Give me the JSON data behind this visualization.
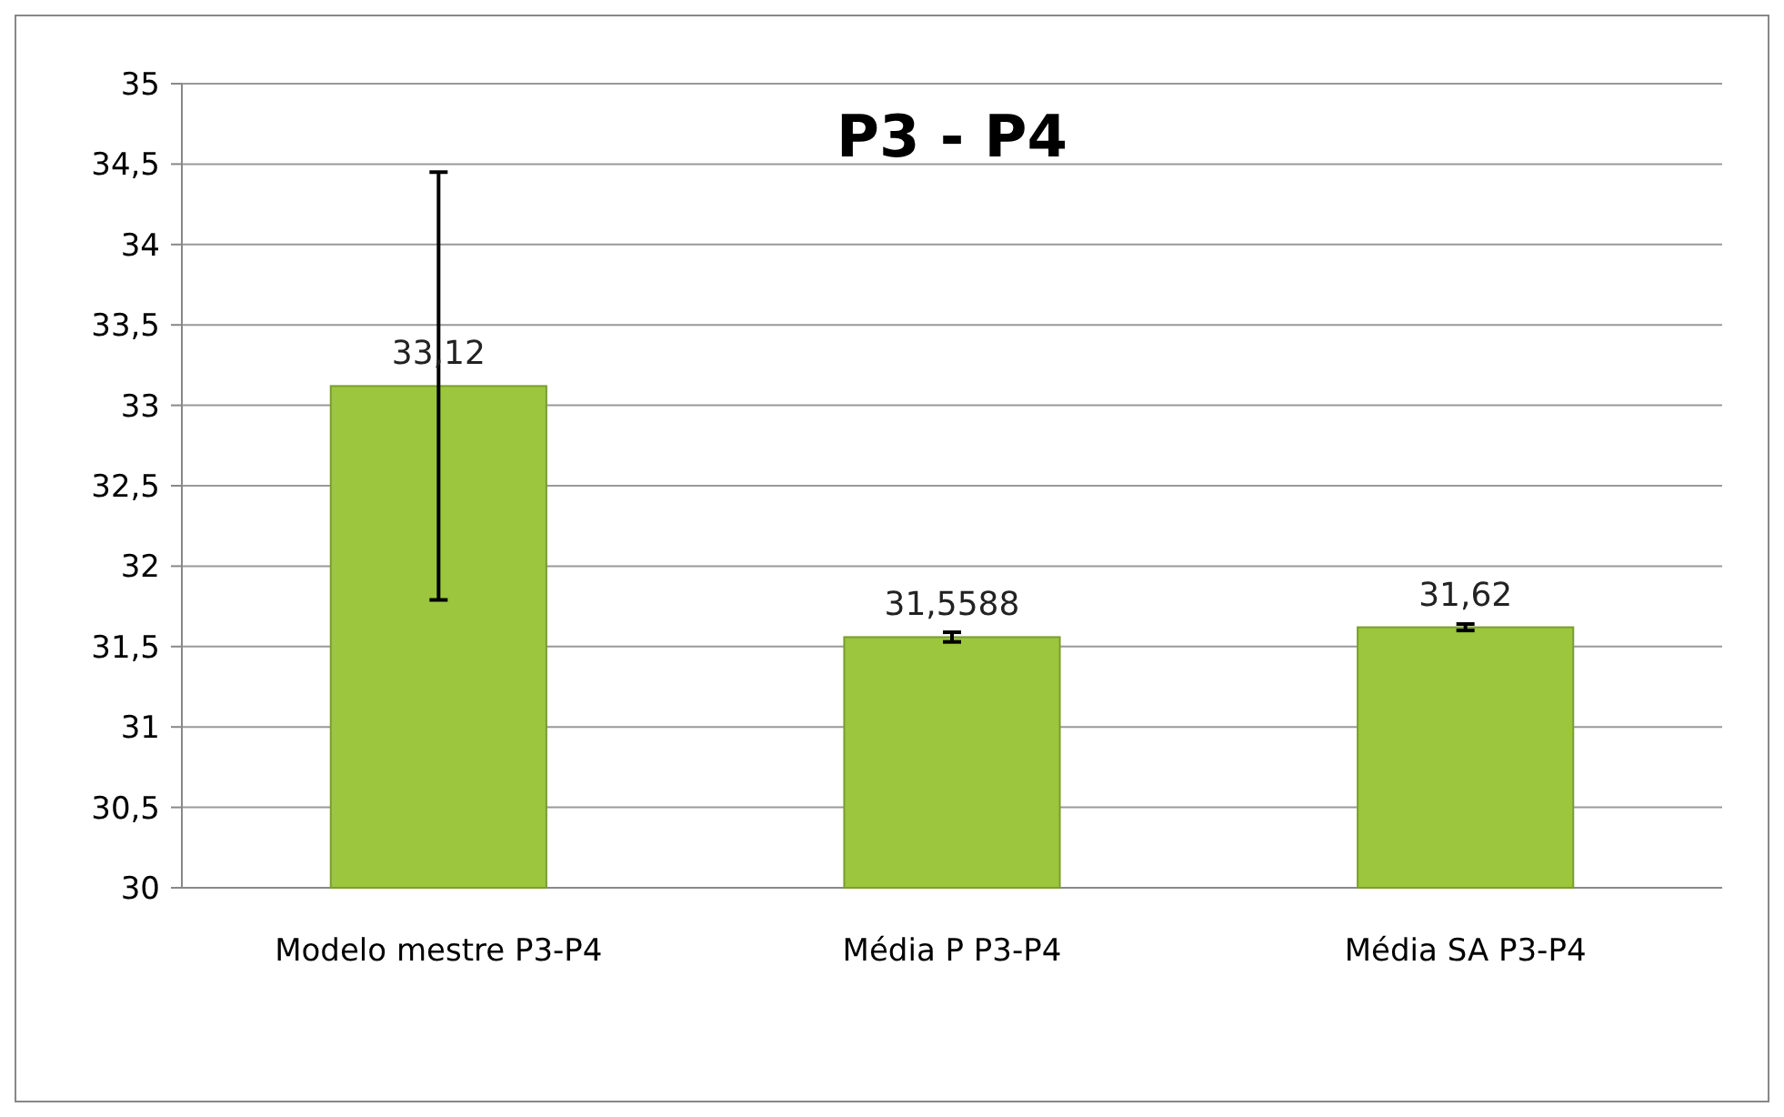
{
  "chart_data": {
    "type": "bar",
    "title": "P3 - P4",
    "categories": [
      "Modelo mestre P3-P4",
      "Média P P3-P4",
      "Média SA P3-P4"
    ],
    "values": [
      33.12,
      31.5588,
      31.62
    ],
    "errors": [
      1.33,
      0.03,
      0.02
    ],
    "value_labels": [
      "33,12",
      "31,5588",
      "31,62"
    ],
    "color": "#9bc63e",
    "ylim": [
      30,
      35
    ],
    "yticks": [
      {
        "value": 30,
        "label": "30"
      },
      {
        "value": 30.5,
        "label": "30,5"
      },
      {
        "value": 31,
        "label": "31"
      },
      {
        "value": 31.5,
        "label": "31,5"
      },
      {
        "value": 32,
        "label": "32"
      },
      {
        "value": 32.5,
        "label": "32,5"
      },
      {
        "value": 33,
        "label": "33"
      },
      {
        "value": 33.5,
        "label": "33,5"
      },
      {
        "value": 34,
        "label": "34"
      },
      {
        "value": 34.5,
        "label": "34,5"
      },
      {
        "value": 35,
        "label": "35"
      }
    ],
    "grid": "y"
  }
}
